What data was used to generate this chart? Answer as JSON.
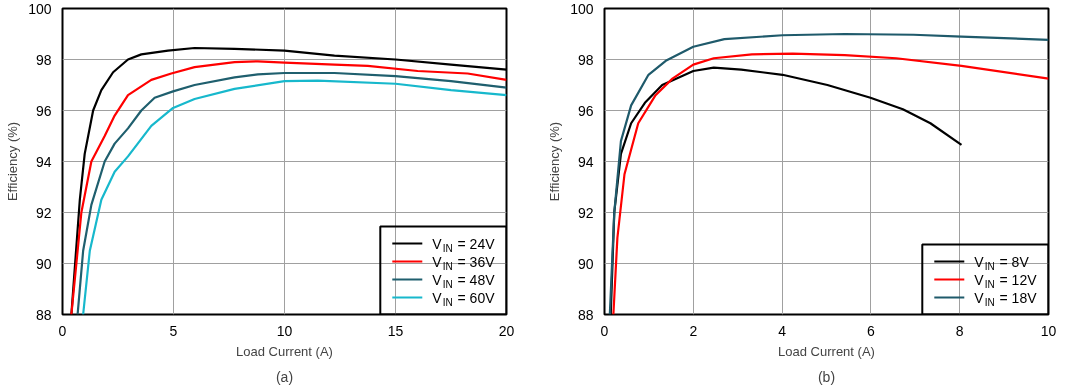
{
  "chart_data": [
    {
      "type": "line",
      "xlabel": "Load Current (A)",
      "ylabel": "Efficiency (%)",
      "annotations": [
        "(a)"
      ],
      "xlim": [
        0,
        20
      ],
      "ylim": [
        88,
        100
      ],
      "xticks": [
        0,
        5,
        10,
        15,
        20
      ],
      "yticks": [
        88,
        90,
        92,
        94,
        96,
        98,
        100
      ],
      "grid": true,
      "legend": "bottom right",
      "series": [
        {
          "name": "V$_{IN}$ = 24V",
          "color": "#000000",
          "x": [
            0.4,
            0.78,
            1.0,
            1.38,
            1.75,
            2.28,
            2.95,
            3.55,
            4.75,
            5.95,
            7.75,
            10,
            12.25,
            15,
            17.5,
            20
          ],
          "values": [
            88,
            92.5,
            94.3,
            96,
            96.8,
            97.5,
            98,
            98.2,
            98.35,
            98.45,
            98.42,
            98.35,
            98.15,
            98,
            97.8,
            97.6
          ]
        },
        {
          "name": "V$_{IN}$ = 36V",
          "color": "#ff0000",
          "x": [
            0.4,
            0.85,
            1.3,
            1.9,
            2.35,
            2.95,
            4,
            4.9,
            5.95,
            7.75,
            8.8,
            10,
            12.25,
            13.75,
            16,
            18.25,
            20
          ],
          "values": [
            88,
            92,
            94,
            95,
            95.8,
            96.6,
            97.2,
            97.45,
            97.7,
            97.9,
            97.93,
            97.88,
            97.8,
            97.75,
            97.55,
            97.45,
            97.2
          ]
        },
        {
          "name": "V$_{IN}$ = 48V",
          "color": "#1f5f6e",
          "x": [
            0.68,
            0.93,
            1.3,
            1.9,
            2.35,
            2.95,
            3.55,
            4.15,
            4.98,
            5.95,
            7.75,
            8.8,
            10,
            12.25,
            15,
            17.5,
            20
          ],
          "values": [
            88,
            90.5,
            92.3,
            94,
            94.7,
            95.3,
            96,
            96.5,
            96.75,
            97,
            97.3,
            97.42,
            97.47,
            97.47,
            97.35,
            97.15,
            96.9
          ]
        },
        {
          "name": "V$_{IN}$ = 60V",
          "color": "#17b8cc",
          "x": [
            0.93,
            1.23,
            1.75,
            2.35,
            2.95,
            4,
            4.98,
            5.95,
            7.75,
            10,
            11.5,
            15,
            17.5,
            20
          ],
          "values": [
            88,
            90.5,
            92.5,
            93.6,
            94.2,
            95.4,
            96.1,
            96.45,
            96.85,
            97.15,
            97.17,
            97.05,
            96.8,
            96.6
          ]
        }
      ]
    },
    {
      "type": "line",
      "xlabel": "Load Current (A)",
      "ylabel": "Efficiency (%)",
      "annotations": [
        "(b)"
      ],
      "xlim": [
        0,
        10
      ],
      "ylim": [
        88,
        100
      ],
      "xticks": [
        0,
        2,
        4,
        6,
        8,
        10
      ],
      "yticks": [
        88,
        90,
        92,
        94,
        96,
        98,
        100
      ],
      "grid": true,
      "legend": "bottom right",
      "series": [
        {
          "name": "V$_{IN}$ = 8V",
          "color": "#000000",
          "x": [
            0.14,
            0.22,
            0.37,
            0.6,
            0.91,
            1.3,
            2.0,
            2.46,
            3.08,
            4.01,
            5.02,
            5.99,
            6.72,
            7.34,
            8.04
          ],
          "values": [
            88,
            92,
            94.3,
            95.5,
            96.3,
            97,
            97.55,
            97.68,
            97.6,
            97.4,
            97,
            96.5,
            96.05,
            95.5,
            94.65
          ]
        },
        {
          "name": "V$_{IN}$ = 12V",
          "color": "#ff0000",
          "x": [
            0.2,
            0.29,
            0.45,
            0.76,
            1.15,
            1.53,
            2.0,
            2.46,
            3.32,
            4.24,
            5.41,
            6.57,
            8.04,
            10
          ],
          "values": [
            88,
            91,
            93.5,
            95.5,
            96.6,
            97.25,
            97.8,
            98.05,
            98.2,
            98.23,
            98.17,
            98.05,
            97.75,
            97.25
          ]
        },
        {
          "name": "V$_{IN}$ = 18V",
          "color": "#1f5a6b",
          "x": [
            0.12,
            0.22,
            0.37,
            0.6,
            0.99,
            1.38,
            2.0,
            2.7,
            4.01,
            5.41,
            6.96,
            8.04,
            10
          ],
          "values": [
            88,
            92,
            94.8,
            96.2,
            97.4,
            97.95,
            98.5,
            98.8,
            98.95,
            99,
            98.97,
            98.9,
            98.77
          ]
        }
      ]
    }
  ]
}
